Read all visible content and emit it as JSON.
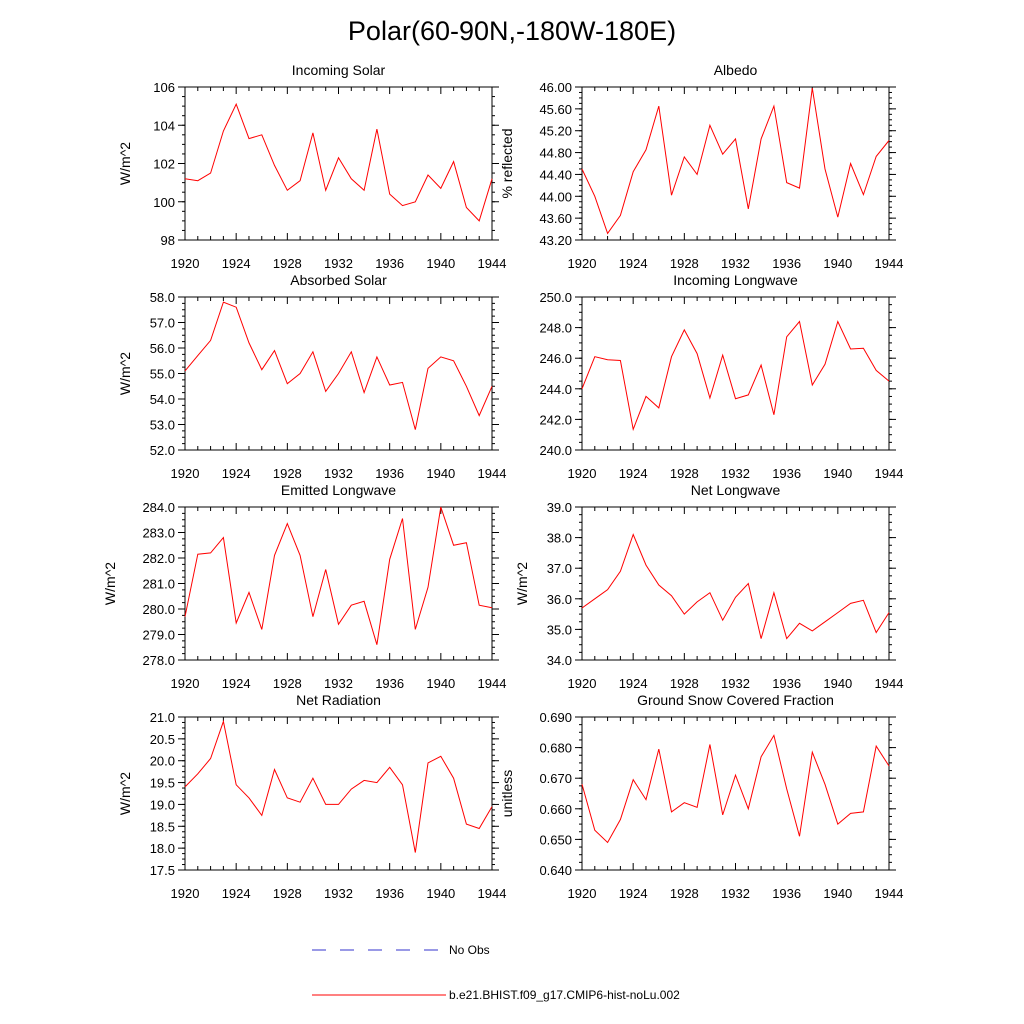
{
  "title": "Polar(60-90N,-180W-180E)",
  "legend": {
    "entries": [
      {
        "label": "No Obs",
        "color": "#3333cc",
        "style": "dashed"
      },
      {
        "label": "b.e21.BHIST.f09_g17.CMIP6-hist-noLu.002",
        "color": "#ff0000",
        "style": "solid"
      }
    ]
  },
  "chart_data": [
    {
      "type": "line",
      "title": "Incoming Solar",
      "xlabel": "",
      "ylabel": "W/m^2",
      "xlim": [
        1920,
        1944
      ],
      "ylim": [
        98,
        106
      ],
      "x_ticks": [
        "1920",
        "1924",
        "1928",
        "1932",
        "1936",
        "1940",
        "1944"
      ],
      "y_ticks": [
        "98",
        "100",
        "102",
        "104",
        "106"
      ],
      "x": [
        1920,
        1921,
        1922,
        1923,
        1924,
        1925,
        1926,
        1927,
        1928,
        1929,
        1930,
        1931,
        1932,
        1933,
        1934,
        1935,
        1936,
        1937,
        1938,
        1939,
        1940,
        1941,
        1942,
        1943,
        1944
      ],
      "series": [
        {
          "name": "b.e21.BHIST.f09_g17.CMIP6-hist-noLu.002",
          "color": "#ff0000",
          "values": [
            101.2,
            101.1,
            101.5,
            103.7,
            105.1,
            103.3,
            103.5,
            101.9,
            100.6,
            101.1,
            103.6,
            100.6,
            102.3,
            101.2,
            100.6,
            103.8,
            100.4,
            99.8,
            100.0,
            101.4,
            100.7,
            102.1,
            99.7,
            99.0,
            101.2
          ]
        }
      ]
    },
    {
      "type": "line",
      "title": "Albedo",
      "xlabel": "",
      "ylabel": "% reflected",
      "xlim": [
        1920,
        1944
      ],
      "ylim": [
        43.2,
        46.0
      ],
      "x_ticks": [
        "1920",
        "1924",
        "1928",
        "1932",
        "1936",
        "1940",
        "1944"
      ],
      "y_ticks": [
        "43.20",
        "43.60",
        "44.00",
        "44.40",
        "44.80",
        "45.20",
        "45.60",
        "46.00"
      ],
      "x": [
        1920,
        1921,
        1922,
        1923,
        1924,
        1925,
        1926,
        1927,
        1928,
        1929,
        1930,
        1931,
        1932,
        1933,
        1934,
        1935,
        1936,
        1937,
        1938,
        1939,
        1940,
        1941,
        1942,
        1943,
        1944
      ],
      "series": [
        {
          "name": "b.e21.BHIST.f09_g17.CMIP6-hist-noLu.002",
          "color": "#ff0000",
          "values": [
            44.5,
            44.0,
            43.32,
            43.65,
            44.45,
            44.85,
            45.65,
            44.02,
            44.72,
            44.4,
            45.3,
            44.77,
            45.05,
            43.77,
            45.05,
            45.65,
            44.25,
            44.15,
            45.98,
            44.5,
            43.62,
            44.6,
            44.03,
            44.73,
            45.02
          ]
        }
      ]
    },
    {
      "type": "line",
      "title": "Absorbed Solar",
      "xlabel": "",
      "ylabel": "W/m^2",
      "xlim": [
        1920,
        1944
      ],
      "ylim": [
        52.0,
        58.0
      ],
      "x_ticks": [
        "1920",
        "1924",
        "1928",
        "1932",
        "1936",
        "1940",
        "1944"
      ],
      "y_ticks": [
        "52.0",
        "53.0",
        "54.0",
        "55.0",
        "56.0",
        "57.0",
        "58.0"
      ],
      "x": [
        1920,
        1921,
        1922,
        1923,
        1924,
        1925,
        1926,
        1927,
        1928,
        1929,
        1930,
        1931,
        1932,
        1933,
        1934,
        1935,
        1936,
        1937,
        1938,
        1939,
        1940,
        1941,
        1942,
        1943,
        1944
      ],
      "series": [
        {
          "name": "b.e21.BHIST.f09_g17.CMIP6-hist-noLu.002",
          "color": "#ff0000",
          "values": [
            55.1,
            55.7,
            56.3,
            57.8,
            57.6,
            56.2,
            55.15,
            55.9,
            54.6,
            55.0,
            55.85,
            54.3,
            55.0,
            55.85,
            54.25,
            55.65,
            54.55,
            54.65,
            52.8,
            55.2,
            55.65,
            55.5,
            54.5,
            53.35,
            54.5
          ]
        }
      ]
    },
    {
      "type": "line",
      "title": "Incoming Longwave",
      "xlabel": "",
      "ylabel": "",
      "xlim": [
        1920,
        1944
      ],
      "ylim": [
        240.0,
        250.0
      ],
      "x_ticks": [
        "1920",
        "1924",
        "1928",
        "1932",
        "1936",
        "1940",
        "1944"
      ],
      "y_ticks": [
        "240.0",
        "242.0",
        "244.0",
        "246.0",
        "248.0",
        "250.0"
      ],
      "x": [
        1920,
        1921,
        1922,
        1923,
        1924,
        1925,
        1926,
        1927,
        1928,
        1929,
        1930,
        1931,
        1932,
        1933,
        1934,
        1935,
        1936,
        1937,
        1938,
        1939,
        1940,
        1941,
        1942,
        1943,
        1944
      ],
      "series": [
        {
          "name": "b.e21.BHIST.f09_g17.CMIP6-hist-noLu.002",
          "color": "#ff0000",
          "values": [
            244.0,
            246.1,
            245.9,
            245.85,
            241.35,
            243.5,
            242.75,
            246.1,
            247.85,
            246.3,
            243.4,
            246.2,
            243.35,
            243.6,
            245.55,
            242.3,
            247.4,
            248.4,
            244.25,
            245.6,
            248.4,
            246.6,
            246.65,
            245.2,
            244.5
          ]
        }
      ]
    },
    {
      "type": "line",
      "title": "Emitted Longwave",
      "xlabel": "",
      "ylabel": "W/m^2",
      "xlim": [
        1920,
        1944
      ],
      "ylim": [
        278.0,
        284.0
      ],
      "x_ticks": [
        "1920",
        "1924",
        "1928",
        "1932",
        "1936",
        "1940",
        "1944"
      ],
      "y_ticks": [
        "278.0",
        "279.0",
        "280.0",
        "281.0",
        "282.0",
        "283.0",
        "284.0"
      ],
      "x": [
        1920,
        1921,
        1922,
        1923,
        1924,
        1925,
        1926,
        1927,
        1928,
        1929,
        1930,
        1931,
        1932,
        1933,
        1934,
        1935,
        1936,
        1937,
        1938,
        1939,
        1940,
        1941,
        1942,
        1943,
        1944
      ],
      "series": [
        {
          "name": "b.e21.BHIST.f09_g17.CMIP6-hist-noLu.002",
          "color": "#ff0000",
          "values": [
            279.7,
            282.15,
            282.2,
            282.8,
            279.45,
            280.65,
            279.2,
            282.1,
            283.35,
            282.1,
            279.7,
            281.55,
            279.4,
            280.15,
            280.3,
            278.6,
            281.95,
            283.55,
            279.2,
            280.85,
            284.0,
            282.5,
            282.6,
            280.15,
            280.05
          ]
        }
      ]
    },
    {
      "type": "line",
      "title": "Net Longwave",
      "xlabel": "",
      "ylabel": "W/m^2",
      "xlim": [
        1920,
        1944
      ],
      "ylim": [
        34.0,
        39.0
      ],
      "x_ticks": [
        "1920",
        "1924",
        "1928",
        "1932",
        "1936",
        "1940",
        "1944"
      ],
      "y_ticks": [
        "34.0",
        "35.0",
        "36.0",
        "37.0",
        "38.0",
        "39.0"
      ],
      "x": [
        1920,
        1921,
        1922,
        1923,
        1924,
        1925,
        1926,
        1927,
        1928,
        1929,
        1930,
        1931,
        1932,
        1933,
        1934,
        1935,
        1936,
        1937,
        1938,
        1939,
        1940,
        1941,
        1942,
        1943,
        1944
      ],
      "series": [
        {
          "name": "b.e21.BHIST.f09_g17.CMIP6-hist-noLu.002",
          "color": "#ff0000",
          "values": [
            35.7,
            36.0,
            36.3,
            36.9,
            38.1,
            37.1,
            36.45,
            36.1,
            35.5,
            35.9,
            36.2,
            35.3,
            36.05,
            36.5,
            34.7,
            36.2,
            34.7,
            35.2,
            34.95,
            35.25,
            35.55,
            35.85,
            35.95,
            34.9,
            35.55
          ]
        }
      ]
    },
    {
      "type": "line",
      "title": "Net Radiation",
      "xlabel": "",
      "ylabel": "W/m^2",
      "xlim": [
        1920,
        1944
      ],
      "ylim": [
        17.5,
        21.0
      ],
      "x_ticks": [
        "1920",
        "1924",
        "1928",
        "1932",
        "1936",
        "1940",
        "1944"
      ],
      "y_ticks": [
        "17.5",
        "18.0",
        "18.5",
        "19.0",
        "19.5",
        "20.0",
        "20.5",
        "21.0"
      ],
      "x": [
        1920,
        1921,
        1922,
        1923,
        1924,
        1925,
        1926,
        1927,
        1928,
        1929,
        1930,
        1931,
        1932,
        1933,
        1934,
        1935,
        1936,
        1937,
        1938,
        1939,
        1940,
        1941,
        1942,
        1943,
        1944
      ],
      "series": [
        {
          "name": "b.e21.BHIST.f09_g17.CMIP6-hist-noLu.002",
          "color": "#ff0000",
          "values": [
            19.4,
            19.7,
            20.05,
            20.9,
            19.45,
            19.15,
            18.75,
            19.8,
            19.15,
            19.05,
            19.6,
            19.0,
            19.0,
            19.35,
            19.55,
            19.5,
            19.85,
            19.45,
            17.9,
            19.95,
            20.1,
            19.6,
            18.55,
            18.45,
            18.95
          ]
        }
      ]
    },
    {
      "type": "line",
      "title": "Ground Snow Covered Fraction",
      "xlabel": "",
      "ylabel": "unitless",
      "xlim": [
        1920,
        1944
      ],
      "ylim": [
        0.64,
        0.69
      ],
      "x_ticks": [
        "1920",
        "1924",
        "1928",
        "1932",
        "1936",
        "1940",
        "1944"
      ],
      "y_ticks": [
        "0.640",
        "0.650",
        "0.660",
        "0.670",
        "0.680",
        "0.690"
      ],
      "x": [
        1920,
        1921,
        1922,
        1923,
        1924,
        1925,
        1926,
        1927,
        1928,
        1929,
        1930,
        1931,
        1932,
        1933,
        1934,
        1935,
        1936,
        1937,
        1938,
        1939,
        1940,
        1941,
        1942,
        1943,
        1944
      ],
      "series": [
        {
          "name": "b.e21.BHIST.f09_g17.CMIP6-hist-noLu.002",
          "color": "#ff0000",
          "values": [
            0.668,
            0.653,
            0.649,
            0.6565,
            0.6695,
            0.663,
            0.6795,
            0.659,
            0.662,
            0.6605,
            0.681,
            0.658,
            0.671,
            0.66,
            0.677,
            0.684,
            0.6665,
            0.651,
            0.6785,
            0.668,
            0.655,
            0.6585,
            0.659,
            0.6805,
            0.674
          ]
        }
      ]
    }
  ]
}
